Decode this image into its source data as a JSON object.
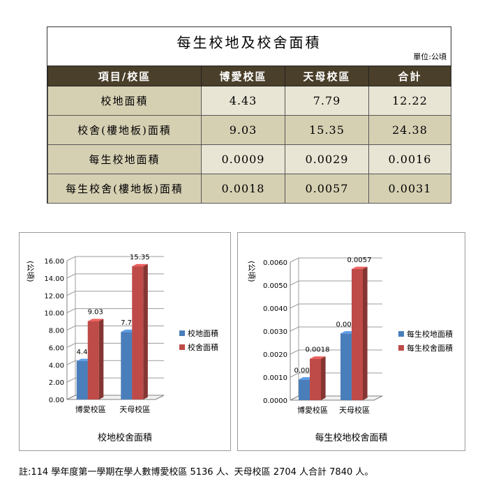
{
  "table": {
    "title": "每生校地及校舍面積",
    "unit": "單位:公頃",
    "headers": [
      "項目/校區",
      "博愛校區",
      "天母校區",
      "合計"
    ],
    "rows": [
      {
        "label": "校地面積",
        "values": [
          "4.43",
          "7.79",
          "12.22"
        ]
      },
      {
        "label": "校舍(樓地板)面積",
        "values": [
          "9.03",
          "15.35",
          "24.38"
        ]
      },
      {
        "label": "每生校地面積",
        "values": [
          "0.0009",
          "0.0029",
          "0.0016"
        ]
      },
      {
        "label": "每生校舍(樓地板)面積",
        "values": [
          "0.0018",
          "0.0057",
          "0.0031"
        ]
      }
    ]
  },
  "chart_data": [
    {
      "type": "bar",
      "title": "",
      "caption": "校地校舍面積",
      "ylabel": "(公頃)",
      "categories": [
        "博愛校區",
        "天母校區"
      ],
      "series": [
        {
          "name": "校地面積",
          "values": [
            4.43,
            7.79
          ],
          "color": "#4a7ebb"
        },
        {
          "name": "校舍面積",
          "values": [
            9.03,
            15.35
          ],
          "color": "#be4b48"
        }
      ],
      "data_labels": [
        [
          "4.43",
          "7.79"
        ],
        [
          "9.03",
          "15.35"
        ]
      ],
      "ylim": [
        0,
        16
      ],
      "yticks": [
        "0.00",
        "2.00",
        "4.00",
        "6.00",
        "8.00",
        "10.00",
        "12.00",
        "14.00",
        "16.00"
      ],
      "grid": true,
      "legend": "right"
    },
    {
      "type": "bar",
      "title": "",
      "caption": "每生校地校舍面積",
      "ylabel": "(公頃)",
      "categories": [
        "博愛校區",
        "天母校區"
      ],
      "series": [
        {
          "name": "每生校地面積",
          "values": [
            0.0009,
            0.0029
          ],
          "color": "#4a7ebb"
        },
        {
          "name": "每生校舍面積",
          "values": [
            0.0018,
            0.0057
          ],
          "color": "#be4b48"
        }
      ],
      "data_labels": [
        [
          "0.0009",
          "0.0029"
        ],
        [
          "0.0018",
          "0.0057"
        ]
      ],
      "ylim": [
        0,
        0.006
      ],
      "yticks": [
        "0.0000",
        "0.0010",
        "0.0020",
        "0.0030",
        "0.0040",
        "0.0050",
        "0.0060"
      ],
      "grid": true,
      "legend": "right"
    }
  ],
  "footnote": "註:114 學年度第一學期在學人數博愛校區 5136 人、天母校區 2704 人合計 7840 人。"
}
